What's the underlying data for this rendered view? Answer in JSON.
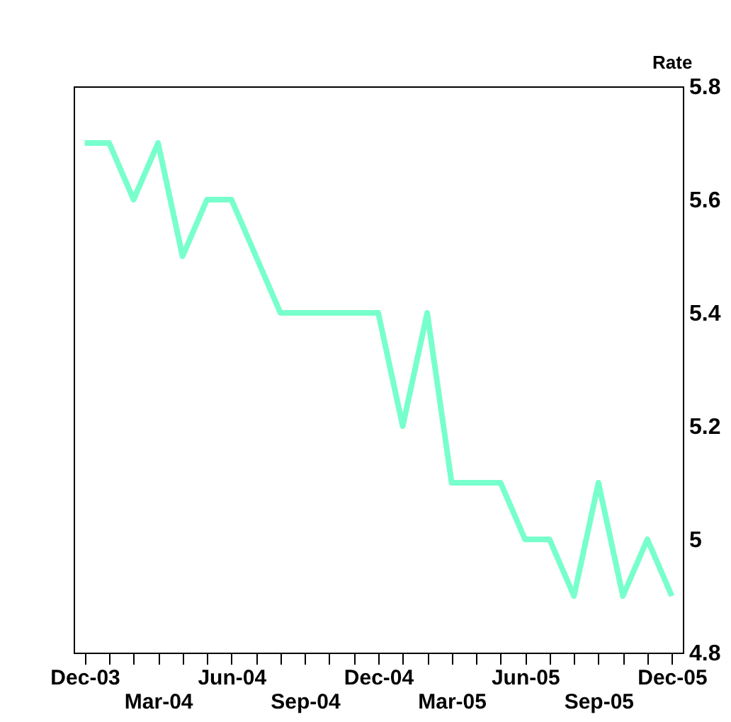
{
  "chart_data": {
    "type": "line",
    "ylabel": "Rate",
    "categories": [
      "Dec-03",
      null,
      null,
      "Mar-04",
      null,
      null,
      "Jun-04",
      null,
      null,
      "Sep-04",
      null,
      null,
      "Dec-04",
      null,
      null,
      "Mar-05",
      null,
      null,
      "Jun-05",
      null,
      null,
      "Sep-05",
      null,
      null,
      "Dec-05"
    ],
    "series": [
      {
        "color": "#77ffcc",
        "values": [
          5.7,
          5.7,
          5.6,
          5.7,
          5.5,
          5.6,
          5.6,
          5.5,
          5.4,
          5.4,
          5.4,
          5.4,
          5.4,
          5.2,
          5.4,
          5.1,
          5.1,
          5.1,
          5.0,
          5.0,
          4.9,
          5.1,
          4.9,
          5.0,
          4.9
        ]
      }
    ],
    "ylim": [
      4.8,
      5.8
    ],
    "yticks": [
      4.8,
      5.0,
      5.2,
      5.4,
      5.6,
      5.8
    ],
    "grid": false,
    "legend": false,
    "marker": "none",
    "line_style": "solid"
  }
}
